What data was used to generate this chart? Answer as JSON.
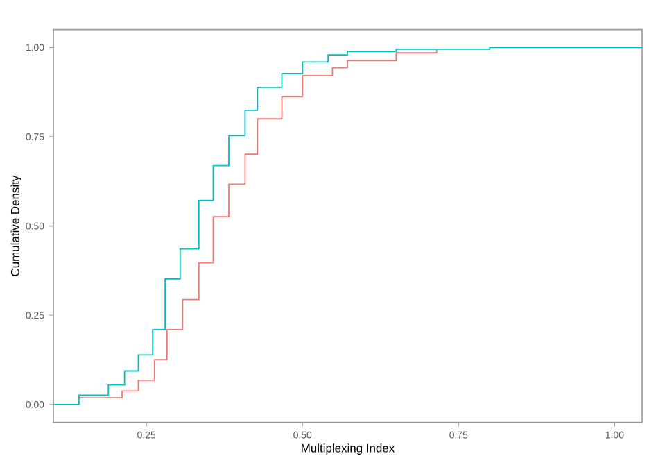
{
  "chart_data": {
    "type": "step",
    "xlabel": "Multiplexing Index",
    "ylabel": "Cumulative Density",
    "xlim": [
      0.101,
      1.044
    ],
    "ylim": [
      -0.05,
      1.05
    ],
    "xticks": [
      {
        "value": 0.25,
        "label": "0.25"
      },
      {
        "value": 0.5,
        "label": "0.50"
      },
      {
        "value": 0.75,
        "label": "0.75"
      },
      {
        "value": 1.0,
        "label": "1.00"
      }
    ],
    "yticks": [
      {
        "value": 0,
        "label": "0.00"
      },
      {
        "value": 0.25,
        "label": "0.25"
      },
      {
        "value": 0.5,
        "label": "0.50"
      },
      {
        "value": 0.75,
        "label": "0.75"
      },
      {
        "value": 1.0,
        "label": "1.00"
      }
    ],
    "series": [
      {
        "color": "#f8766d",
        "x": [
          0.142,
          0.211,
          0.237,
          0.263,
          0.283,
          0.308,
          0.334,
          0.357,
          0.382,
          0.408,
          0.428,
          0.467,
          0.5,
          0.548,
          0.572,
          0.65,
          0.715
        ],
        "values": [
          0.019,
          0.038,
          0.068,
          0.126,
          0.21,
          0.294,
          0.397,
          0.526,
          0.617,
          0.701,
          0.8,
          0.862,
          0.921,
          0.943,
          0.963,
          0.985,
          0.995
        ]
      },
      {
        "color": "#00bfc4",
        "x": [
          0.101,
          0.142,
          0.189,
          0.215,
          0.237,
          0.26,
          0.28,
          0.304,
          0.334,
          0.357,
          0.382,
          0.408,
          0.428,
          0.467,
          0.5,
          0.541,
          0.572,
          0.65,
          0.8,
          1.044
        ],
        "values": [
          0,
          0.026,
          0.055,
          0.094,
          0.139,
          0.21,
          0.352,
          0.436,
          0.572,
          0.669,
          0.753,
          0.824,
          0.888,
          0.927,
          0.959,
          0.979,
          0.989,
          0.995,
          1.0,
          1.0
        ]
      }
    ]
  }
}
